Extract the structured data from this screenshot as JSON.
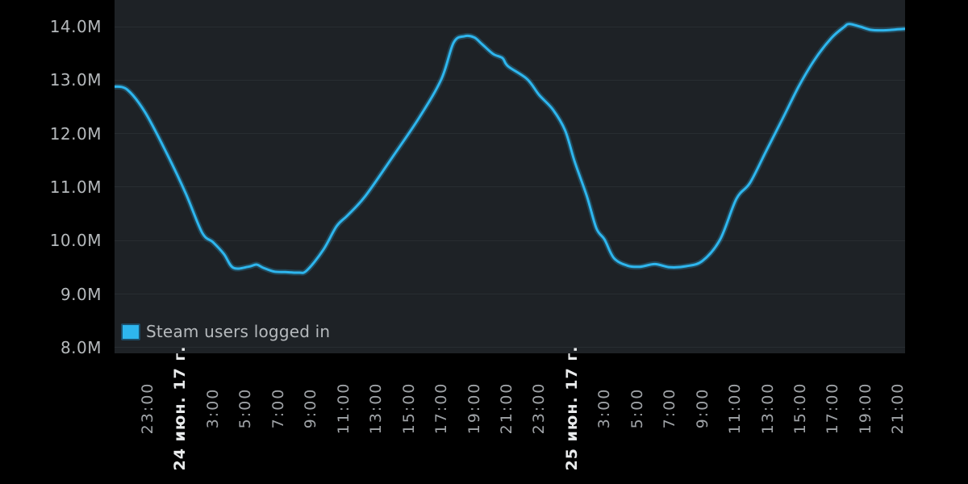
{
  "colors": {
    "page_bg": "#000000",
    "plot_bg": "#1e2226",
    "grid": "#282d31",
    "y_label": "#b5b9bc",
    "time_label": "#a0a4a8",
    "date_label": "#e9ebec",
    "legend_text": "#b6babd",
    "line": "#2eb6ee",
    "swatch_border": "#1c4f6b"
  },
  "chart_data": {
    "type": "line",
    "title": "",
    "units": "millions of concurrent users",
    "grid": "horizontal-only",
    "legend_position": "bottom-left",
    "ylim": [
      8.0,
      14.6
    ],
    "y_tick_labels": [
      "14.0M",
      "13.0M",
      "12.0M",
      "11.0M",
      "10.0M",
      "9.0M",
      "8.0M"
    ],
    "y_tick_values": [
      14,
      13,
      12,
      11,
      10,
      9,
      8
    ],
    "x_ticks": [
      {
        "label": "23:00",
        "is_date": false
      },
      {
        "label": "24 июн. 17 г.",
        "is_date": true
      },
      {
        "label": "3:00",
        "is_date": false
      },
      {
        "label": "5:00",
        "is_date": false
      },
      {
        "label": "7:00",
        "is_date": false
      },
      {
        "label": "9:00",
        "is_date": false
      },
      {
        "label": "11:00",
        "is_date": false
      },
      {
        "label": "13:00",
        "is_date": false
      },
      {
        "label": "15:00",
        "is_date": false
      },
      {
        "label": "17:00",
        "is_date": false
      },
      {
        "label": "19:00",
        "is_date": false
      },
      {
        "label": "21:00",
        "is_date": false
      },
      {
        "label": "23:00",
        "is_date": false
      },
      {
        "label": "25 июн. 17 г.",
        "is_date": true
      },
      {
        "label": "3:00",
        "is_date": false
      },
      {
        "label": "5:00",
        "is_date": false
      },
      {
        "label": "7:00",
        "is_date": false
      },
      {
        "label": "9:00",
        "is_date": false
      },
      {
        "label": "11:00",
        "is_date": false
      },
      {
        "label": "13:00",
        "is_date": false
      },
      {
        "label": "15:00",
        "is_date": false
      },
      {
        "label": "17:00",
        "is_date": false
      },
      {
        "label": "19:00",
        "is_date": false
      },
      {
        "label": "21:00",
        "is_date": false
      }
    ],
    "series": [
      {
        "name": "Steam users logged in",
        "color": "#2eb6ee",
        "points": [
          [
            "06-23 20:58",
            12.88
          ],
          [
            "06-23 21:45",
            12.82
          ],
          [
            "06-23 22:50",
            12.4
          ],
          [
            "06-24 00:10",
            11.63
          ],
          [
            "06-24 01:20",
            10.88
          ],
          [
            "06-24 02:20",
            10.15
          ],
          [
            "06-24 03:00",
            9.97
          ],
          [
            "06-24 03:40",
            9.75
          ],
          [
            "06-24 04:15",
            9.49
          ],
          [
            "06-24 05:10",
            9.51
          ],
          [
            "06-24 05:40",
            9.55
          ],
          [
            "06-24 06:05",
            9.49
          ],
          [
            "06-24 06:45",
            9.42
          ],
          [
            "06-24 07:25",
            9.41
          ],
          [
            "06-24 08:15",
            9.4
          ],
          [
            "06-24 08:45",
            9.44
          ],
          [
            "06-24 09:45",
            9.82
          ],
          [
            "06-24 10:35",
            10.27
          ],
          [
            "06-24 11:15",
            10.47
          ],
          [
            "06-24 12:20",
            10.83
          ],
          [
            "06-24 14:00",
            11.56
          ],
          [
            "06-24 15:40",
            12.31
          ],
          [
            "06-24 17:00",
            13.02
          ],
          [
            "06-24 17:45",
            13.7
          ],
          [
            "06-24 18:25",
            13.82
          ],
          [
            "06-24 19:00",
            13.8
          ],
          [
            "06-24 19:30",
            13.67
          ],
          [
            "06-24 20:10",
            13.49
          ],
          [
            "06-24 20:45",
            13.41
          ],
          [
            "06-24 21:05",
            13.26
          ],
          [
            "06-24 22:15",
            13.02
          ],
          [
            "06-24 23:00",
            12.72
          ],
          [
            "06-24 23:50",
            12.45
          ],
          [
            "06-25 00:35",
            12.06
          ],
          [
            "06-25 01:10",
            11.48
          ],
          [
            "06-25 01:55",
            10.83
          ],
          [
            "06-25 02:30",
            10.23
          ],
          [
            "06-25 03:00",
            10.02
          ],
          [
            "06-25 03:35",
            9.67
          ],
          [
            "06-25 04:25",
            9.53
          ],
          [
            "06-25 05:10",
            9.51
          ],
          [
            "06-25 06:05",
            9.56
          ],
          [
            "06-25 07:00",
            9.5
          ],
          [
            "06-25 08:00",
            9.52
          ],
          [
            "06-25 09:00",
            9.62
          ],
          [
            "06-25 10:05",
            10.02
          ],
          [
            "06-25 11:05",
            10.78
          ],
          [
            "06-25 11:55",
            11.08
          ],
          [
            "06-25 12:55",
            11.68
          ],
          [
            "06-25 13:55",
            12.28
          ],
          [
            "06-25 14:55",
            12.89
          ],
          [
            "06-25 15:55",
            13.4
          ],
          [
            "06-25 16:55",
            13.79
          ],
          [
            "06-25 17:40",
            13.99
          ],
          [
            "06-25 18:00",
            14.05
          ],
          [
            "06-25 18:40",
            14.0
          ],
          [
            "06-25 19:20",
            13.94
          ],
          [
            "06-25 20:05",
            13.93
          ],
          [
            "06-25 20:35",
            13.94
          ],
          [
            "06-25 21:00",
            13.95
          ],
          [
            "06-25 21:25",
            13.96
          ]
        ]
      }
    ]
  }
}
